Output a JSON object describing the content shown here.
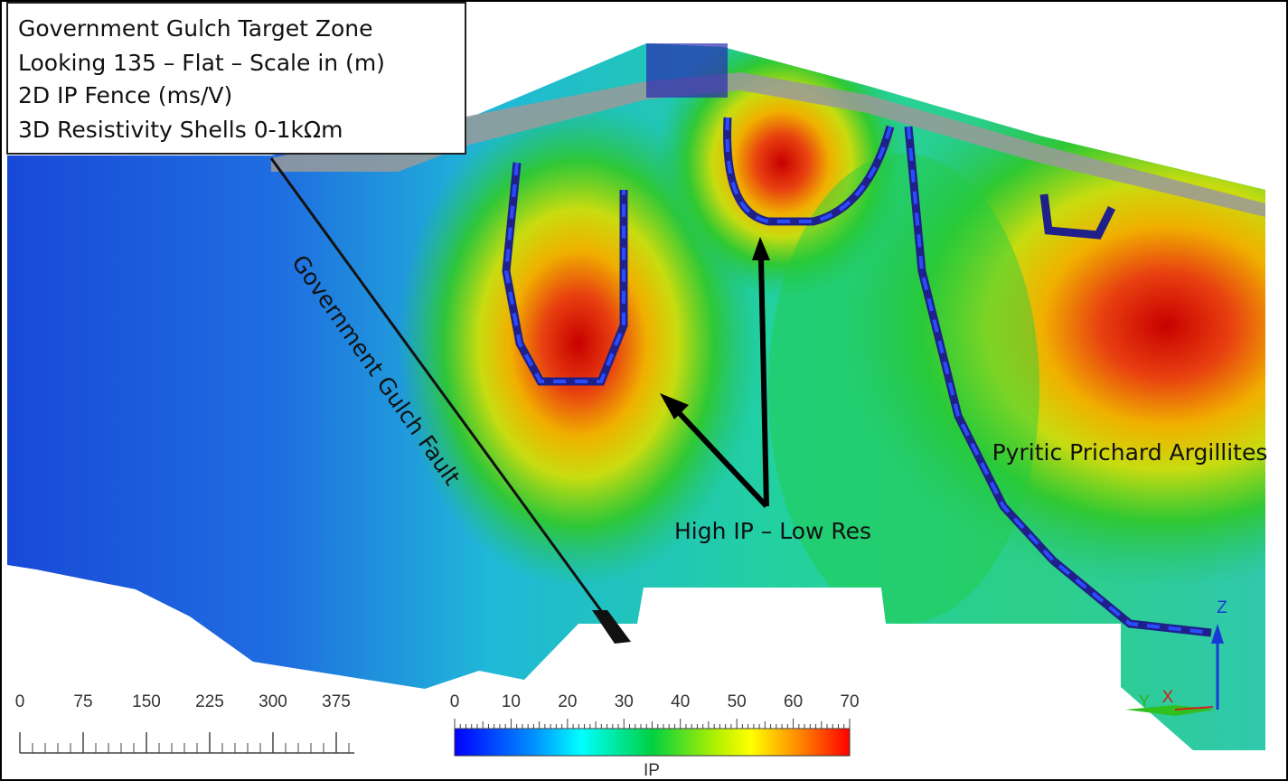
{
  "legend_box": {
    "lines": [
      "Government Gulch Target Zone",
      "Looking 135 – Flat – Scale in (m)",
      "2D IP Fence (ms/V)",
      "3D Resistivity Shells 0-1kΩm"
    ]
  },
  "annotations": {
    "fault": "Government Gulch Fault",
    "anomaly": "High IP – Low Res",
    "unit": "Pyritic Prichard Argillites"
  },
  "scale_bar": {
    "ticks": [
      0,
      75,
      150,
      225,
      300,
      375
    ]
  },
  "color_bar": {
    "ticks": [
      0,
      10,
      20,
      30,
      40,
      50,
      60,
      70
    ],
    "label": "IP"
  },
  "axes_triad": {
    "z": "Z",
    "y": "Y",
    "x": "X"
  }
}
